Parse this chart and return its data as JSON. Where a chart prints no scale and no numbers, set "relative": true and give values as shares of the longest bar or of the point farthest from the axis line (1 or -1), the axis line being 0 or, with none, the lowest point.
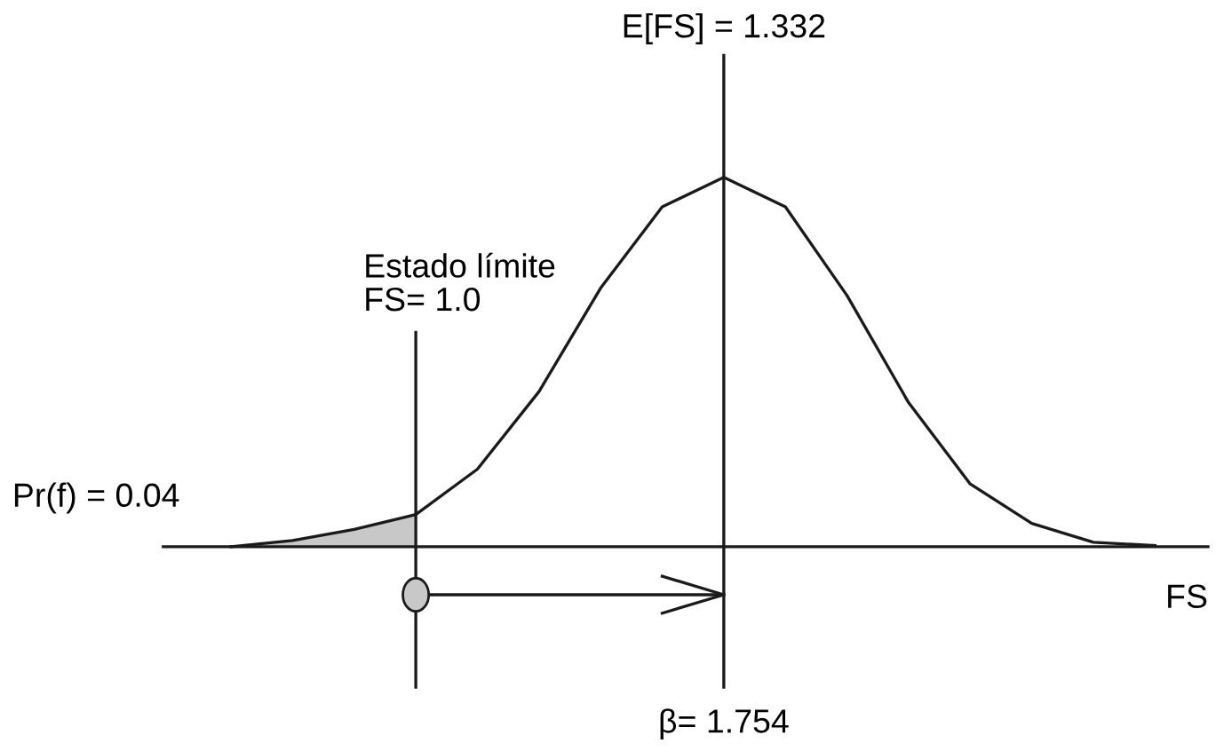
{
  "chart_data": {
    "type": "line",
    "relative": true,
    "xlabel": "FS",
    "marker": "none",
    "line_style": "solid",
    "categories": [
      null,
      null,
      null,
      null,
      null,
      null,
      null,
      null,
      null,
      null,
      null,
      null,
      null,
      null,
      null,
      null
    ],
    "series": [
      {
        "color": "#1a1a1a",
        "values": [
          0,
          0.017,
          0.047,
          0.087,
          0.21,
          0.42,
          0.7,
          0.92,
          1.0,
          0.92,
          0.68,
          0.39,
          0.17,
          0.063,
          0.012,
          0.003
        ]
      },
      {
        "type": "area",
        "color": "#c8c8c8",
        "values": [
          0,
          0.017,
          0.047,
          0.087,
          null,
          null,
          null,
          null,
          null,
          null,
          null,
          null,
          null,
          null,
          null,
          null
        ]
      }
    ],
    "annotations": [
      "E[FS] = 1.332",
      "Estado límite\nFS= 1.0",
      "Pr(f) = 0.04",
      "β= 1.754"
    ]
  }
}
